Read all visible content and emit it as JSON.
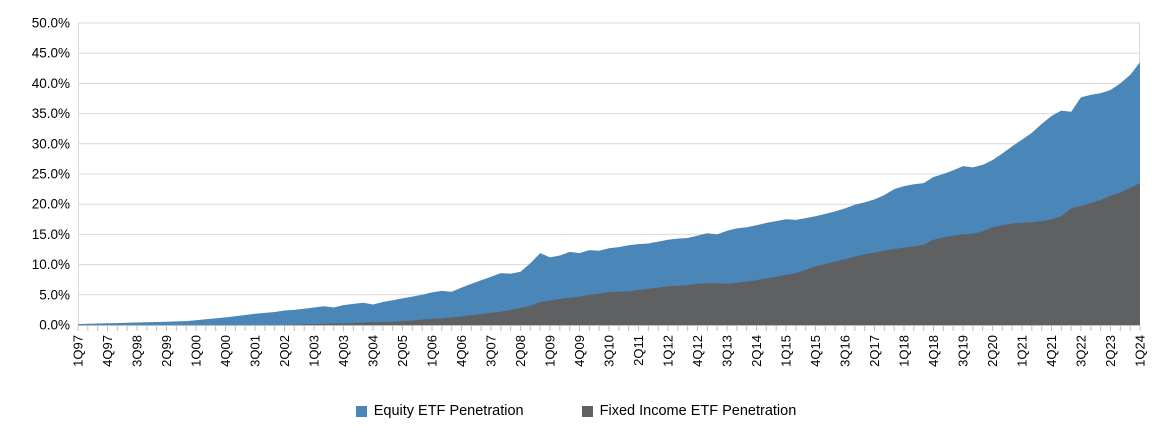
{
  "chart_data": {
    "type": "area",
    "title": "",
    "x_axis": {
      "tick_labels": [
        "1Q97",
        "4Q97",
        "3Q98",
        "2Q99",
        "1Q00",
        "4Q00",
        "3Q01",
        "2Q02",
        "1Q03",
        "4Q03",
        "3Q04",
        "2Q05",
        "1Q06",
        "4Q06",
        "3Q07",
        "2Q08",
        "1Q09",
        "4Q09",
        "3Q10",
        "2Q11",
        "1Q12",
        "4Q12",
        "3Q13",
        "2Q14",
        "1Q15",
        "4Q15",
        "3Q16",
        "2Q17",
        "1Q18",
        "4Q18",
        "3Q19",
        "2Q20",
        "1Q21",
        "4Q21",
        "3Q22",
        "2Q23",
        "1Q24"
      ],
      "points_per_label": 3,
      "label_rotation_deg": -90
    },
    "y_axis": {
      "tick_labels": [
        "0.0%",
        "5.0%",
        "10.0%",
        "15.0%",
        "20.0%",
        "25.0%",
        "30.0%",
        "35.0%",
        "40.0%",
        "45.0%",
        "50.0%"
      ],
      "min": 0,
      "max": 50,
      "tick_step": 5
    },
    "grid": true,
    "legend_position": "bottom-center",
    "stacked": false,
    "series": [
      {
        "name": "Equity ETF Penetration",
        "color": "#4A86B8",
        "values": [
          0.15,
          0.2,
          0.25,
          0.3,
          0.32,
          0.37,
          0.42,
          0.45,
          0.5,
          0.55,
          0.6,
          0.65,
          0.8,
          0.95,
          1.1,
          1.25,
          1.45,
          1.65,
          1.85,
          2.0,
          2.15,
          2.4,
          2.5,
          2.7,
          2.9,
          3.1,
          2.9,
          3.3,
          3.5,
          3.7,
          3.4,
          3.8,
          4.1,
          4.4,
          4.7,
          5.0,
          5.4,
          5.65,
          5.5,
          6.2,
          6.8,
          7.4,
          8.0,
          8.6,
          8.5,
          8.8,
          10.2,
          11.9,
          11.2,
          11.5,
          12.1,
          11.9,
          12.4,
          12.3,
          12.7,
          12.9,
          13.2,
          13.4,
          13.5,
          13.8,
          14.1,
          14.3,
          14.4,
          14.8,
          15.2,
          15.0,
          15.6,
          16.0,
          16.2,
          16.5,
          16.9,
          17.2,
          17.5,
          17.4,
          17.7,
          18.0,
          18.4,
          18.8,
          19.3,
          19.9,
          20.3,
          20.8,
          21.5,
          22.5,
          23.0,
          23.3,
          23.5,
          24.5,
          25.0,
          25.6,
          26.3,
          26.1,
          26.5,
          27.3,
          28.4,
          29.6,
          30.7,
          31.8,
          33.3,
          34.6,
          35.5,
          35.3,
          37.7,
          38.1,
          38.4,
          38.9,
          40.0,
          41.4,
          43.5
        ]
      },
      {
        "name": "Fixed Income ETF Penetration",
        "color": "#5F6062",
        "values": [
          0,
          0,
          0,
          0,
          0,
          0,
          0,
          0,
          0,
          0,
          0,
          0,
          0,
          0,
          0,
          0,
          0,
          0,
          0,
          0,
          0,
          0,
          0.05,
          0.1,
          0.15,
          0.2,
          0.25,
          0.3,
          0.35,
          0.4,
          0.45,
          0.5,
          0.55,
          0.65,
          0.75,
          0.9,
          1.0,
          1.1,
          1.25,
          1.4,
          1.6,
          1.8,
          2.0,
          2.2,
          2.5,
          2.8,
          3.2,
          3.8,
          4.0,
          4.3,
          4.5,
          4.7,
          5.0,
          5.2,
          5.4,
          5.5,
          5.6,
          5.8,
          6.0,
          6.2,
          6.4,
          6.5,
          6.6,
          6.8,
          6.9,
          6.9,
          6.8,
          7.0,
          7.2,
          7.4,
          7.7,
          8.0,
          8.3,
          8.6,
          9.1,
          9.7,
          10.1,
          10.5,
          10.9,
          11.3,
          11.7,
          12.0,
          12.3,
          12.6,
          12.8,
          13.0,
          13.3,
          14.1,
          14.5,
          14.8,
          15.0,
          15.1,
          15.5,
          16.2,
          16.5,
          16.8,
          16.9,
          17.0,
          17.2,
          17.5,
          18.0,
          19.3,
          19.7,
          20.2,
          20.7,
          21.4,
          21.9,
          22.7,
          23.5
        ]
      }
    ]
  },
  "legend": {
    "items": [
      {
        "label": "Equity ETF Penetration",
        "color": "#4A86B8"
      },
      {
        "label": "Fixed Income ETF Penetration",
        "color": "#5F6062"
      }
    ]
  },
  "style_colors": {
    "gridline": "#D9D9D9",
    "axis_line": "#BFBFBF",
    "tick": "#BFBFBF",
    "text": "#000000",
    "background": "#FFFFFF"
  }
}
